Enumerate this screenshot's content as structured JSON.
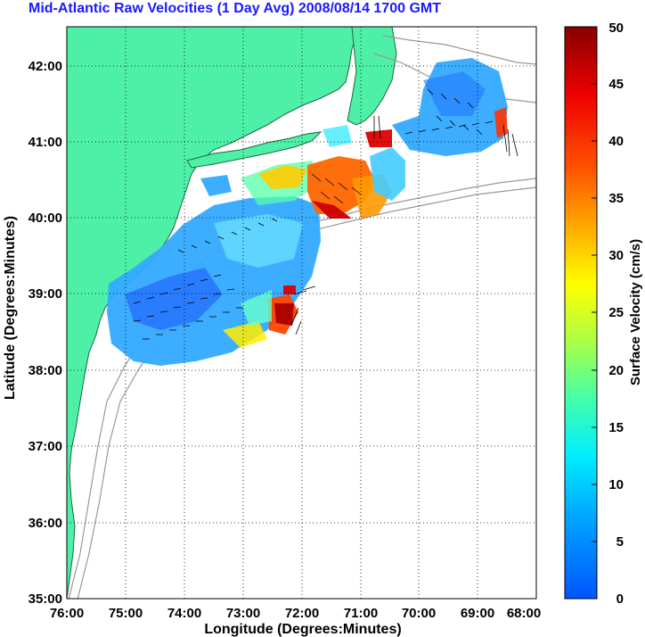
{
  "title": "Mid-Atlantic Raw Velocities (1 Day Avg) 2008/08/14 1700 GMT",
  "chart_data": {
    "type": "heatmap",
    "title": "Mid-Atlantic Raw Velocities (1 Day Avg) 2008/08/14 1700 GMT",
    "xlabel": "Longitude (Degrees:Minutes)",
    "ylabel": "Latitude (Degrees:Minutes)",
    "x_ticks": [
      "76:00",
      "75:00",
      "74:00",
      "73:00",
      "72:00",
      "71:00",
      "70:00",
      "69:00",
      "68:00"
    ],
    "y_ticks": [
      "42:00",
      "41:00",
      "40:00",
      "39:00",
      "38:00",
      "37:00",
      "36:00",
      "35:00"
    ],
    "xlim": [
      -76,
      -68
    ],
    "ylim": [
      35,
      42.5
    ],
    "grid": true,
    "colorbar": {
      "label": "Surface Velocity (cm/s)",
      "ticks": [
        "50",
        "45",
        "40",
        "35",
        "30",
        "25",
        "20",
        "15",
        "10",
        "5",
        "0"
      ],
      "range": [
        0,
        50
      ],
      "colormap": "jet"
    }
  },
  "colors": {
    "land": "#4ef0a8",
    "title": "#1a1aff",
    "isobath": "#999999",
    "grid": "#000000"
  }
}
